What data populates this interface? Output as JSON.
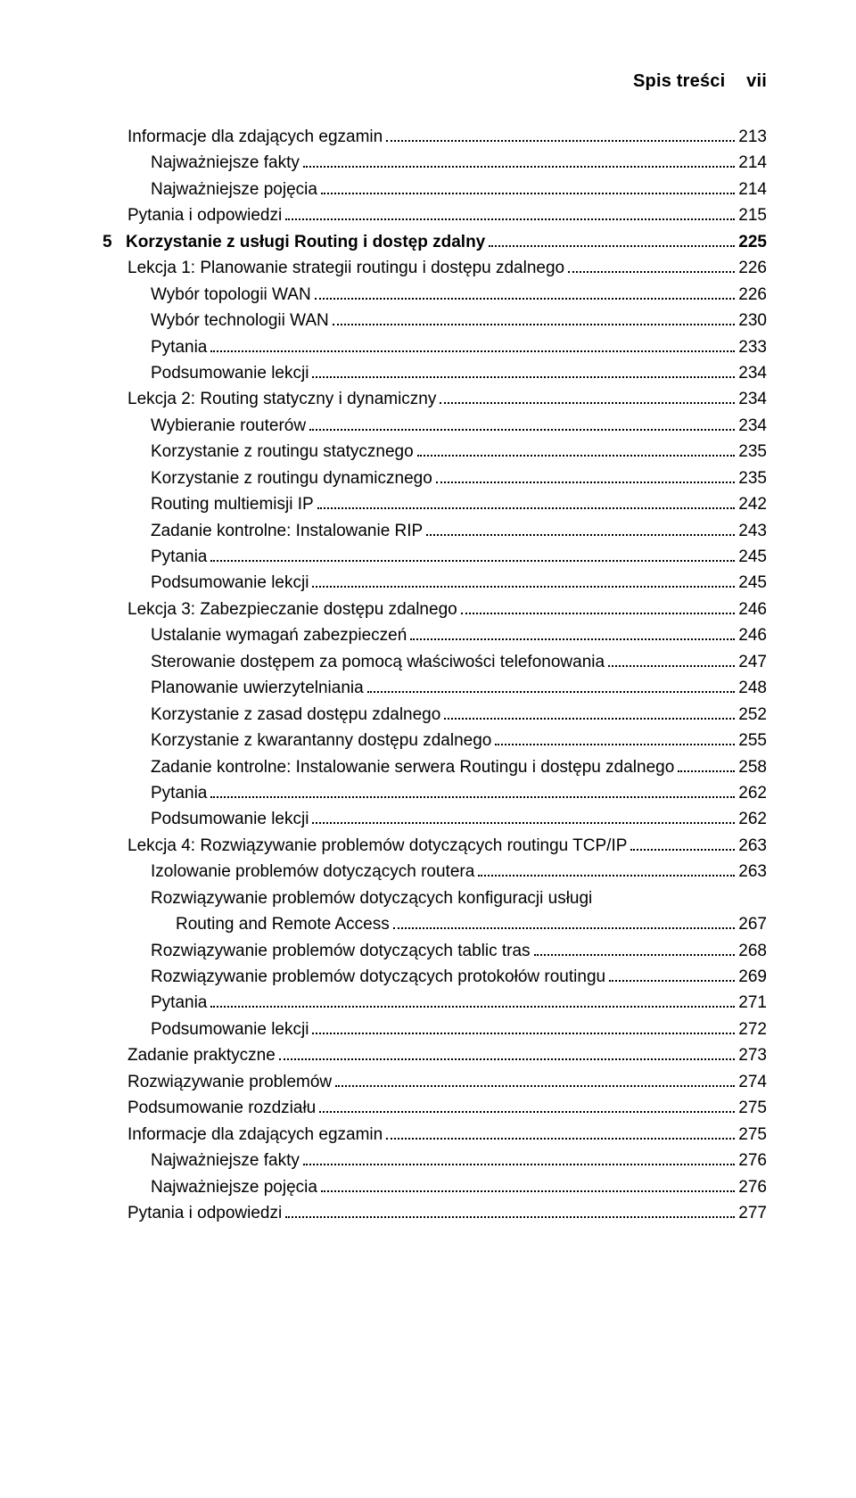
{
  "header": {
    "title": "Spis treści",
    "page_label": "vii"
  },
  "entries": [
    {
      "indent": 1,
      "bold": false,
      "num": "",
      "label": "Informacje dla zdających egzamin",
      "page": "213"
    },
    {
      "indent": 2,
      "bold": false,
      "num": "",
      "label": "Najważniejsze fakty",
      "page": "214"
    },
    {
      "indent": 2,
      "bold": false,
      "num": "",
      "label": "Najważniejsze pojęcia",
      "page": "214"
    },
    {
      "indent": 1,
      "bold": false,
      "num": "",
      "label": "Pytania i odpowiedzi",
      "page": "215"
    },
    {
      "indent": 0,
      "bold": true,
      "num": "5",
      "label": "Korzystanie z usługi Routing i dostęp zdalny",
      "page": "225"
    },
    {
      "indent": 1,
      "bold": false,
      "num": "",
      "label": "Lekcja 1: Planowanie strategii routingu i dostępu zdalnego",
      "page": "226"
    },
    {
      "indent": 2,
      "bold": false,
      "num": "",
      "label": "Wybór topologii WAN",
      "page": "226"
    },
    {
      "indent": 2,
      "bold": false,
      "num": "",
      "label": "Wybór technologii WAN",
      "page": "230"
    },
    {
      "indent": 2,
      "bold": false,
      "num": "",
      "label": "Pytania",
      "page": "233"
    },
    {
      "indent": 2,
      "bold": false,
      "num": "",
      "label": "Podsumowanie lekcji",
      "page": "234"
    },
    {
      "indent": 1,
      "bold": false,
      "num": "",
      "label": "Lekcja 2: Routing statyczny i dynamiczny",
      "page": "234"
    },
    {
      "indent": 2,
      "bold": false,
      "num": "",
      "label": "Wybieranie routerów",
      "page": "234"
    },
    {
      "indent": 2,
      "bold": false,
      "num": "",
      "label": "Korzystanie z routingu statycznego",
      "page": "235"
    },
    {
      "indent": 2,
      "bold": false,
      "num": "",
      "label": "Korzystanie z routingu dynamicznego",
      "page": "235"
    },
    {
      "indent": 2,
      "bold": false,
      "num": "",
      "label": "Routing multiemisji IP",
      "page": "242"
    },
    {
      "indent": 2,
      "bold": false,
      "num": "",
      "label": "Zadanie kontrolne: Instalowanie RIP",
      "page": "243"
    },
    {
      "indent": 2,
      "bold": false,
      "num": "",
      "label": "Pytania",
      "page": "245"
    },
    {
      "indent": 2,
      "bold": false,
      "num": "",
      "label": "Podsumowanie lekcji",
      "page": "245"
    },
    {
      "indent": 1,
      "bold": false,
      "num": "",
      "label": "Lekcja 3: Zabezpieczanie dostępu zdalnego",
      "page": "246"
    },
    {
      "indent": 2,
      "bold": false,
      "num": "",
      "label": "Ustalanie wymagań zabezpieczeń",
      "page": "246"
    },
    {
      "indent": 2,
      "bold": false,
      "num": "",
      "label": "Sterowanie dostępem za pomocą właściwości telefonowania",
      "page": "247"
    },
    {
      "indent": 2,
      "bold": false,
      "num": "",
      "label": "Planowanie uwierzytelniania",
      "page": "248"
    },
    {
      "indent": 2,
      "bold": false,
      "num": "",
      "label": "Korzystanie z zasad dostępu zdalnego",
      "page": "252"
    },
    {
      "indent": 2,
      "bold": false,
      "num": "",
      "label": "Korzystanie z kwarantanny dostępu zdalnego",
      "page": "255"
    },
    {
      "indent": 2,
      "bold": false,
      "num": "",
      "label": "Zadanie kontrolne: Instalowanie serwera Routingu i dostępu zdalnego",
      "page": "258"
    },
    {
      "indent": 2,
      "bold": false,
      "num": "",
      "label": "Pytania",
      "page": "262"
    },
    {
      "indent": 2,
      "bold": false,
      "num": "",
      "label": "Podsumowanie lekcji",
      "page": "262"
    },
    {
      "indent": 1,
      "bold": false,
      "num": "",
      "label": "Lekcja 4: Rozwiązywanie problemów dotyczących routingu TCP/IP",
      "page": "263"
    },
    {
      "indent": 2,
      "bold": false,
      "num": "",
      "label": "Izolowanie problemów dotyczących routera",
      "page": "263"
    },
    {
      "indent": 2,
      "bold": false,
      "num": "",
      "label": "Rozwiązywanie problemów dotyczących konfiguracji usługi",
      "page": "",
      "cont": "Routing and Remote Access",
      "cont_page": "267"
    },
    {
      "indent": 2,
      "bold": false,
      "num": "",
      "label": "Rozwiązywanie problemów dotyczących tablic tras",
      "page": "268"
    },
    {
      "indent": 2,
      "bold": false,
      "num": "",
      "label": "Rozwiązywanie problemów dotyczących protokołów routingu",
      "page": "269"
    },
    {
      "indent": 2,
      "bold": false,
      "num": "",
      "label": "Pytania",
      "page": "271"
    },
    {
      "indent": 2,
      "bold": false,
      "num": "",
      "label": "Podsumowanie lekcji",
      "page": "272"
    },
    {
      "indent": 1,
      "bold": false,
      "num": "",
      "label": "Zadanie praktyczne",
      "page": "273"
    },
    {
      "indent": 1,
      "bold": false,
      "num": "",
      "label": "Rozwiązywanie problemów",
      "page": "274"
    },
    {
      "indent": 1,
      "bold": false,
      "num": "",
      "label": "Podsumowanie rozdziału",
      "page": "275"
    },
    {
      "indent": 1,
      "bold": false,
      "num": "",
      "label": "Informacje dla zdających egzamin",
      "page": "275"
    },
    {
      "indent": 2,
      "bold": false,
      "num": "",
      "label": "Najważniejsze fakty",
      "page": "276"
    },
    {
      "indent": 2,
      "bold": false,
      "num": "",
      "label": "Najważniejsze pojęcia",
      "page": "276"
    },
    {
      "indent": 1,
      "bold": false,
      "num": "",
      "label": "Pytania i odpowiedzi",
      "page": "277"
    }
  ]
}
